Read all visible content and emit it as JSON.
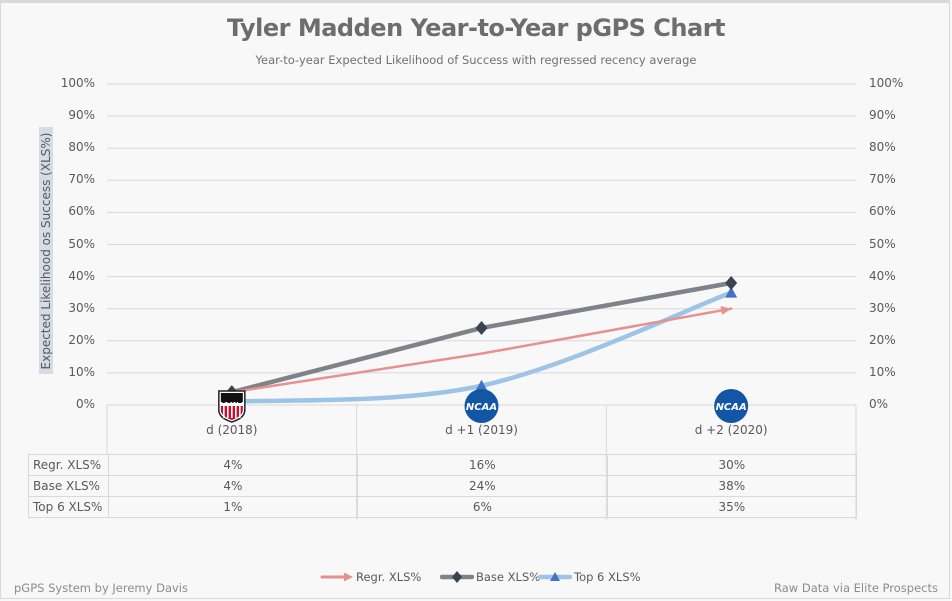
{
  "chart_data": {
    "type": "line",
    "title": "Tyler Madden Year-to-Year pGPS Chart",
    "subtitle": "Year-to-year Expected Likelihood of Success with regressed recency average",
    "ylabel": "Expected Likelihood os Success (XLS%)",
    "xlabel": "",
    "ylim": [
      0,
      100
    ],
    "y_ticks": [
      "0%",
      "10%",
      "20%",
      "30%",
      "40%",
      "50%",
      "60%",
      "70%",
      "80%",
      "90%",
      "100%"
    ],
    "y_tick_values": [
      0,
      10,
      20,
      30,
      40,
      50,
      60,
      70,
      80,
      90,
      100
    ],
    "grid": true,
    "categories": [
      "d (2018)",
      "d +1 (2019)",
      "d +2 (2020)"
    ],
    "category_leagues": [
      "USHL",
      "NCAA",
      "NCAA"
    ],
    "series": [
      {
        "name": "Regr. XLS%",
        "values": [
          4,
          16,
          30
        ],
        "display": [
          "4%",
          "16%",
          "30%"
        ],
        "color": "#e8908e",
        "marker": "arrow",
        "smooth": false
      },
      {
        "name": "Base XLS%",
        "values": [
          4,
          24,
          38
        ],
        "display": [
          "4%",
          "24%",
          "38%"
        ],
        "color": "#7f8289",
        "marker_color": "#3a4350",
        "marker": "diamond",
        "smooth": false
      },
      {
        "name": "Top 6 XLS%",
        "values": [
          1,
          6,
          35
        ],
        "display": [
          "1%",
          "6%",
          "35%"
        ],
        "color": "#9dc3e6",
        "marker_color": "#4472c4",
        "marker": "triangle",
        "smooth": true
      }
    ],
    "legend_position": "bottom",
    "data_table": true
  },
  "footer": {
    "credit": "pGPS System by Jeremy Davis",
    "source": "Raw Data via Elite Prospects"
  },
  "logos": {
    "ushl": "USHL",
    "ncaa": "NCAA"
  }
}
